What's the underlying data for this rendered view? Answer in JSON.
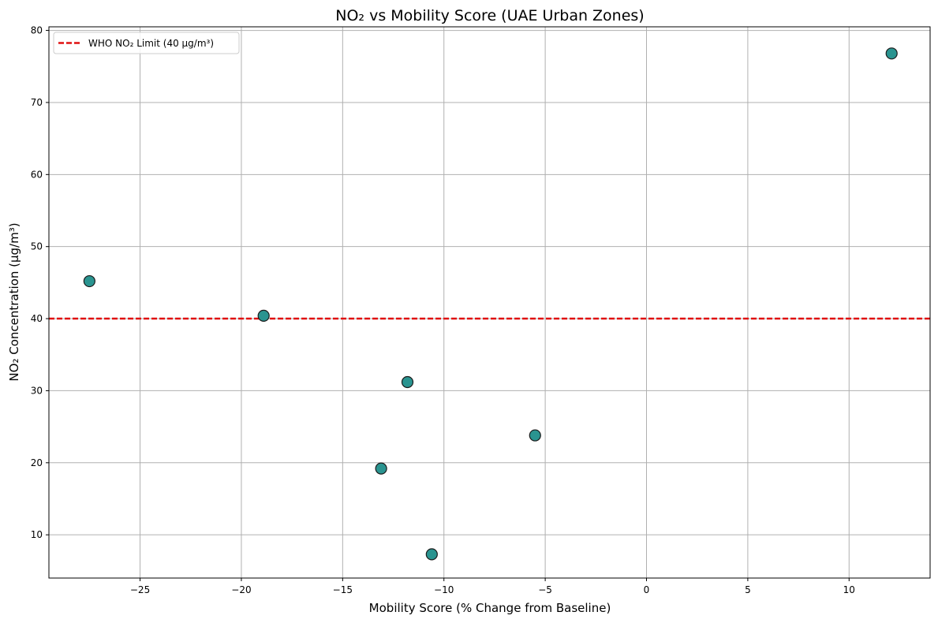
{
  "chart_data": {
    "type": "scatter",
    "title": "NO₂ vs Mobility Score (UAE Urban Zones)",
    "xlabel": "Mobility Score (% Change from Baseline)",
    "ylabel": "NO₂ Concentration (µg/m³)",
    "xlim": [
      -29.5,
      14.0
    ],
    "ylim": [
      4.0,
      80.5
    ],
    "x_ticks": [
      -25,
      -20,
      -15,
      -10,
      -5,
      0,
      5,
      10
    ],
    "y_ticks": [
      10,
      20,
      30,
      40,
      50,
      60,
      70,
      80
    ],
    "grid": true,
    "legend_position": "top-left",
    "series": [
      {
        "values": [
          {
            "x": -27.5,
            "y": 45.2
          },
          {
            "x": -18.9,
            "y": 40.4
          },
          {
            "x": -11.8,
            "y": 31.2
          },
          {
            "x": -13.1,
            "y": 19.2
          },
          {
            "x": -10.6,
            "y": 7.3
          },
          {
            "x": -5.5,
            "y": 23.8
          },
          {
            "x": 12.1,
            "y": 76.8
          }
        ],
        "color": "#2a9490",
        "edge_color": "#1c1c1c"
      }
    ],
    "reference_lines": [
      {
        "orientation": "horizontal",
        "y": 40,
        "label": "WHO NO₂ Limit (40 µg/m³)",
        "color": "#e01010",
        "style": "dashed"
      }
    ]
  }
}
